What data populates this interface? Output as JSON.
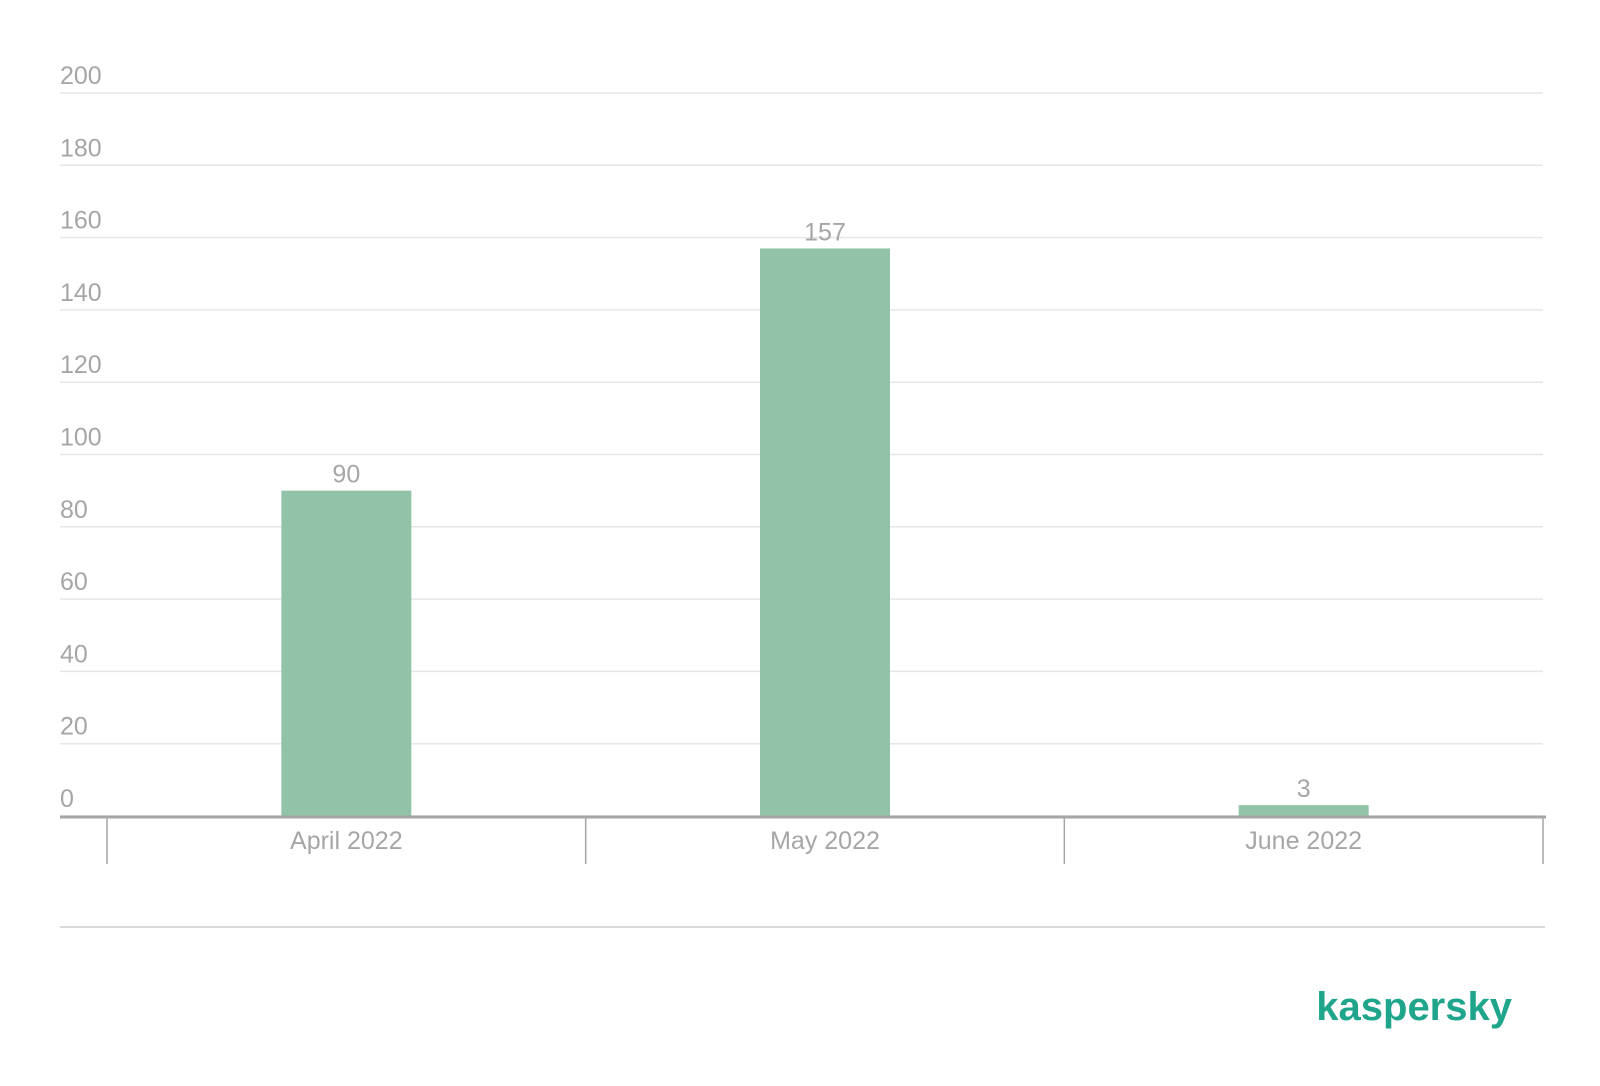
{
  "chart_data": {
    "type": "bar",
    "categories": [
      "April 2022",
      "May 2022",
      "June 2022"
    ],
    "values": [
      90,
      157,
      3
    ],
    "color": "#90c3a7",
    "ylim": [
      0,
      200
    ],
    "yticks": [
      0,
      20,
      40,
      60,
      80,
      100,
      120,
      140,
      160,
      180,
      200
    ],
    "grid": true,
    "brand": "kaspersky"
  }
}
